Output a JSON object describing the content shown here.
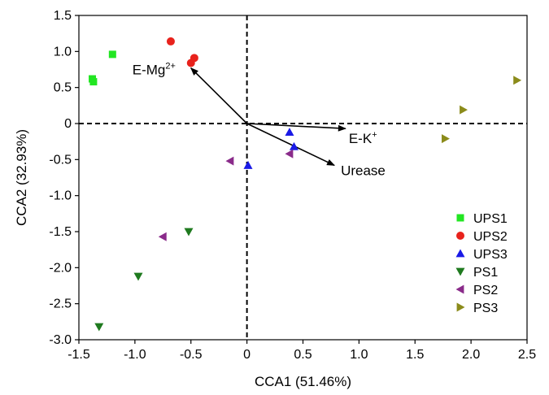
{
  "chart_data": {
    "type": "scatter",
    "xlabel": "CCA1 (51.46%)",
    "ylabel": "CCA2 (32.93%)",
    "xlim": [
      -1.5,
      2.5
    ],
    "ylim": [
      -3.0,
      1.5
    ],
    "xticks": [
      "-1.5",
      "-1.0",
      "-0.5",
      "0",
      "0.5",
      "1.0",
      "1.5",
      "2.0",
      "2.5"
    ],
    "yticks": [
      "1.5",
      "1.0",
      "0.5",
      "0",
      "-0.5",
      "-1.0",
      "-1.5",
      "-2.0",
      "-2.5",
      "-3.0"
    ],
    "grid": false,
    "legend_position": "bottom-right",
    "reference_lines": {
      "x": 0,
      "y": 0,
      "style": "dashed"
    },
    "series": [
      {
        "name": "UPS1",
        "marker": "square",
        "color": "#22e622",
        "points": [
          [
            -1.38,
            0.62
          ],
          [
            -1.37,
            0.58
          ],
          [
            -1.2,
            0.96
          ]
        ]
      },
      {
        "name": "UPS2",
        "marker": "circle",
        "color": "#e8221c",
        "points": [
          [
            -0.68,
            1.14
          ],
          [
            -0.5,
            0.84
          ],
          [
            -0.47,
            0.91
          ]
        ]
      },
      {
        "name": "UPS3",
        "marker": "triangle-up",
        "color": "#1a1ae6",
        "points": [
          [
            0.38,
            -0.12
          ],
          [
            0.42,
            -0.32
          ],
          [
            0.01,
            -0.58
          ]
        ]
      },
      {
        "name": "PS1",
        "marker": "triangle-down",
        "color": "#1f7a1f",
        "points": [
          [
            -0.52,
            -1.5
          ],
          [
            -0.97,
            -2.12
          ],
          [
            -1.32,
            -2.82
          ]
        ]
      },
      {
        "name": "PS2",
        "marker": "triangle-left",
        "color": "#8a2b8a",
        "points": [
          [
            -0.15,
            -0.52
          ],
          [
            0.38,
            -0.42
          ],
          [
            -0.75,
            -1.57
          ]
        ]
      },
      {
        "name": "PS3",
        "marker": "triangle-right",
        "color": "#8b8b1a",
        "points": [
          [
            2.41,
            0.6
          ],
          [
            1.93,
            0.19
          ],
          [
            1.77,
            -0.21
          ]
        ]
      }
    ],
    "arrows": [
      {
        "label": "E-Mg",
        "superscript": "2+",
        "end": [
          -0.5,
          0.77
        ]
      },
      {
        "label": "E-K",
        "superscript": "+",
        "end": [
          0.88,
          -0.07
        ]
      },
      {
        "label": "Urease",
        "end": [
          0.78,
          -0.58
        ]
      }
    ]
  }
}
